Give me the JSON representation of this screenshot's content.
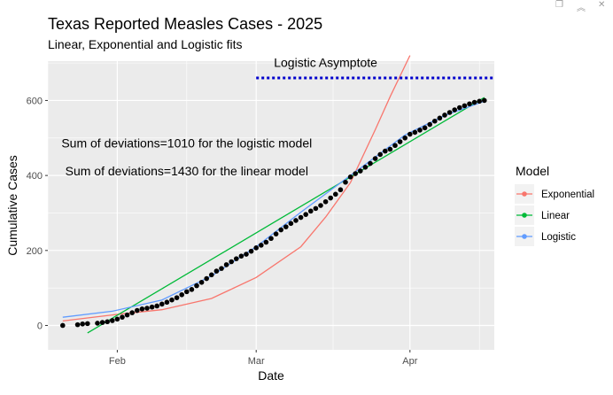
{
  "window_controls": [
    {
      "name": "restore-icon",
      "glyph": "❐"
    },
    {
      "name": "collapse-icon",
      "glyph": "︽"
    },
    {
      "name": "close-icon",
      "glyph": "✕"
    }
  ],
  "chart_data": {
    "type": "scatter",
    "title": "Texas Reported Measles Cases - 2025",
    "subtitle": "Linear, Exponential and Logistic fits",
    "xlabel": "Date",
    "ylabel": "Cumulative Cases",
    "x_axis": {
      "type": "date",
      "range": [
        "2025-01-18",
        "2025-04-18"
      ],
      "ticks": [
        {
          "date": "2025-02-01",
          "label": "Feb"
        },
        {
          "date": "2025-03-01",
          "label": "Mar"
        },
        {
          "date": "2025-04-01",
          "label": "Apr"
        }
      ]
    },
    "y_axis": {
      "range": [
        -65,
        705
      ],
      "ticks": [
        0,
        200,
        400,
        600
      ]
    },
    "grid": true,
    "legend": {
      "title": "Model",
      "position": "right",
      "entries": [
        {
          "label": "Exponential",
          "color": "#F8766D"
        },
        {
          "label": "Linear",
          "color": "#00BA38"
        },
        {
          "label": "Logistic",
          "color": "#619CFF"
        }
      ]
    },
    "colors": {
      "panel": "#EBEBEB",
      "grid": "#FFFFFF",
      "points": "#000000",
      "asymptote": "#0000CC"
    },
    "points": {
      "name": "Reported cases",
      "x": [
        "2025-01-21",
        "2025-01-24",
        "2025-01-25",
        "2025-01-26",
        "2025-01-28",
        "2025-01-29",
        "2025-01-30",
        "2025-01-31",
        "2025-02-01",
        "2025-02-02",
        "2025-02-03",
        "2025-02-04",
        "2025-02-05",
        "2025-02-06",
        "2025-02-07",
        "2025-02-08",
        "2025-02-09",
        "2025-02-10",
        "2025-02-11",
        "2025-02-12",
        "2025-02-13",
        "2025-02-14",
        "2025-02-15",
        "2025-02-16",
        "2025-02-17",
        "2025-02-18",
        "2025-02-19",
        "2025-02-20",
        "2025-02-21",
        "2025-02-22",
        "2025-02-23",
        "2025-02-24",
        "2025-02-25",
        "2025-02-26",
        "2025-02-27",
        "2025-02-28",
        "2025-03-01",
        "2025-03-02",
        "2025-03-03",
        "2025-03-04",
        "2025-03-05",
        "2025-03-06",
        "2025-03-07",
        "2025-03-08",
        "2025-03-09",
        "2025-03-10",
        "2025-03-11",
        "2025-03-12",
        "2025-03-13",
        "2025-03-14",
        "2025-03-15",
        "2025-03-16",
        "2025-03-17",
        "2025-03-18",
        "2025-03-19",
        "2025-03-20",
        "2025-03-21",
        "2025-03-22",
        "2025-03-23",
        "2025-03-24",
        "2025-03-25",
        "2025-03-26",
        "2025-03-27",
        "2025-03-28",
        "2025-03-29",
        "2025-03-30",
        "2025-03-31",
        "2025-04-01",
        "2025-04-02",
        "2025-04-03",
        "2025-04-04",
        "2025-04-05",
        "2025-04-06",
        "2025-04-07",
        "2025-04-08",
        "2025-04-09",
        "2025-04-10",
        "2025-04-11",
        "2025-04-12",
        "2025-04-13",
        "2025-04-14",
        "2025-04-15",
        "2025-04-16"
      ],
      "y": [
        0,
        2,
        4,
        5,
        6,
        8,
        10,
        13,
        17,
        22,
        28,
        34,
        40,
        44,
        46,
        49,
        52,
        57,
        62,
        68,
        74,
        82,
        90,
        96,
        106,
        115,
        125,
        135,
        145,
        152,
        162,
        170,
        178,
        185,
        190,
        198,
        207,
        214,
        222,
        232,
        244,
        255,
        263,
        272,
        280,
        288,
        296,
        305,
        312,
        320,
        330,
        340,
        350,
        362,
        382,
        396,
        405,
        412,
        422,
        432,
        445,
        456,
        465,
        470,
        480,
        490,
        500,
        510,
        515,
        521,
        527,
        536,
        545,
        553,
        561,
        568,
        575,
        581,
        586,
        591,
        595,
        598,
        600
      ]
    },
    "series": [
      {
        "name": "Exponential",
        "x": [
          "2025-01-21",
          "2025-01-31",
          "2025-02-10",
          "2025-02-20",
          "2025-03-01",
          "2025-03-10",
          "2025-03-15",
          "2025-03-20",
          "2025-03-25",
          "2025-03-28",
          "2025-04-01"
        ],
        "y": [
          12,
          28,
          42,
          72,
          128,
          210,
          289,
          381,
          522,
          610,
          720
        ]
      },
      {
        "name": "Linear",
        "x": [
          "2025-01-26",
          "2025-04-16"
        ],
        "y": [
          -20,
          608
        ]
      },
      {
        "name": "Logistic",
        "x": [
          "2025-01-21",
          "2025-01-31",
          "2025-02-10",
          "2025-02-20",
          "2025-03-01",
          "2025-03-10",
          "2025-03-20",
          "2025-03-31",
          "2025-04-08",
          "2025-04-16"
        ],
        "y": [
          22,
          38,
          68,
          132,
          210,
          302,
          400,
          508,
          560,
          598
        ]
      }
    ],
    "asymptote": {
      "name": "Logistic Asymptote",
      "y": 660,
      "x_start": "2025-03-01",
      "x_end": "2025-04-18"
    },
    "annotations": [
      {
        "text": "Logistic Asymptote",
        "x": "2025-03-15",
        "y": 690
      },
      {
        "text": "Sum of deviations=1010 for the logistic model",
        "x": "2025-02-15",
        "y": 475
      },
      {
        "text": "Sum of deviations=1430 for the linear model",
        "x": "2025-02-15",
        "y": 400
      }
    ]
  }
}
